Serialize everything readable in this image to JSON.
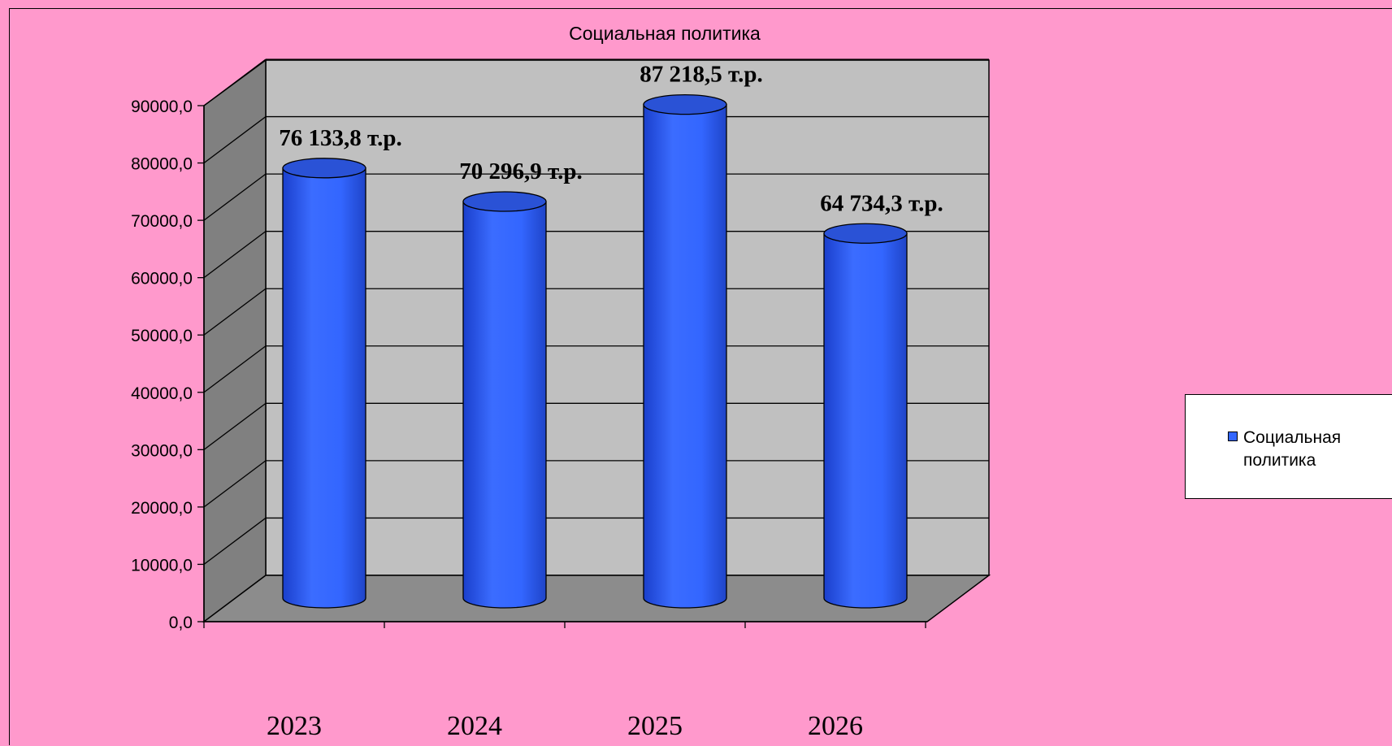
{
  "chart_data": {
    "type": "bar",
    "title": "Социальная политика",
    "categories": [
      "2023",
      "2024",
      "2025",
      "2026"
    ],
    "series": [
      {
        "name": "Социальная политика",
        "values": [
          76133.8,
          70296.9,
          87218.5,
          64734.3
        ],
        "data_labels": [
          "76 133,8 т.р.",
          "70 296,9 т.р.",
          "87 218,5 т.р.",
          "64 734,3 т.р."
        ],
        "color": "#3366ff"
      }
    ],
    "y_ticks": [
      "0,0",
      "10000,0",
      "20000,0",
      "30000,0",
      "40000,0",
      "50000,0",
      "60000,0",
      "70000,0",
      "80000,0",
      "90000,0"
    ],
    "ylim": [
      0,
      90000
    ],
    "grid": true,
    "legend_position": "right",
    "colors": {
      "background": "#ff99cc",
      "back_wall": "#c0c0c0",
      "side_wall": "#808080",
      "floor": "#8c8c8c",
      "bar": "#3366ff"
    }
  }
}
